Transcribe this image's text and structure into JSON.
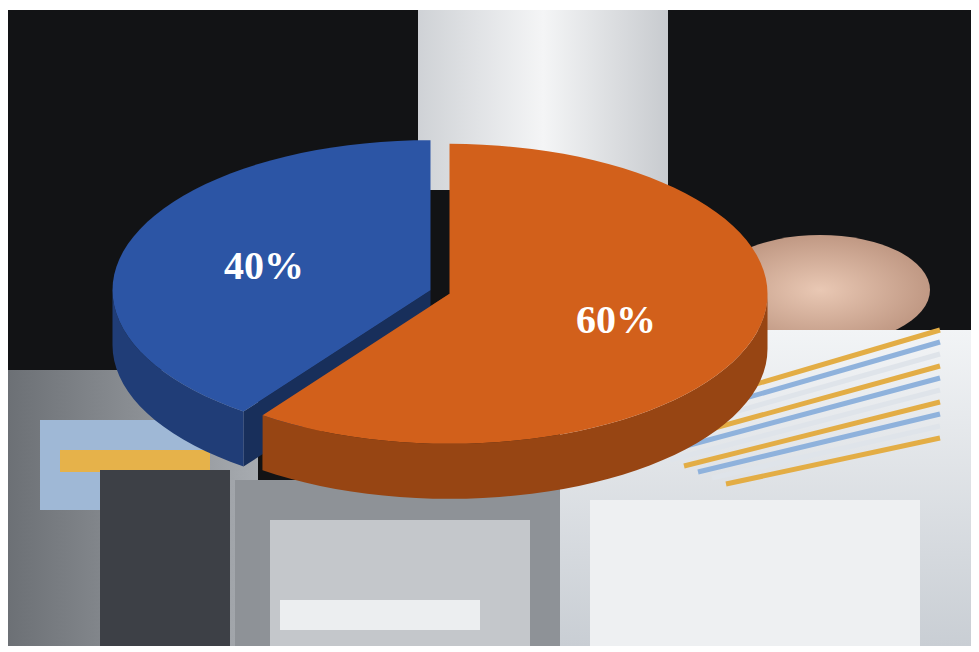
{
  "chart_data": {
    "type": "pie",
    "values": [
      60,
      40
    ],
    "value_labels": [
      "60%",
      "40%"
    ],
    "colors": [
      "#d2601b",
      "#2c55a5"
    ],
    "data_labels": true
  }
}
